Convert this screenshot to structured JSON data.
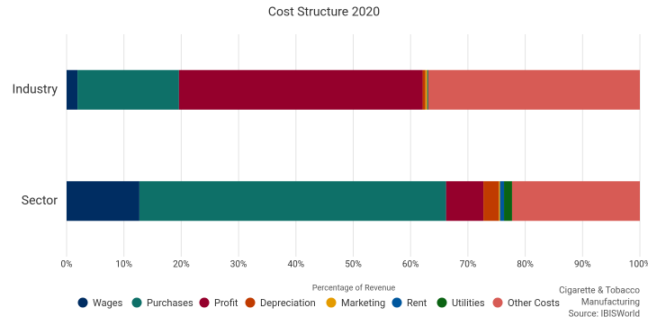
{
  "chart_data": {
    "type": "stacked-barh",
    "title": "Cost Structure 2020",
    "xlabel": "Percentage of Revenue",
    "notes": [
      "Cigarette & Tobacco",
      "Manufacturing",
      "Source: IBISWorld"
    ],
    "categories": [
      "Industry",
      "Sector"
    ],
    "series": [
      {
        "name": "Wages",
        "color": "#002d62",
        "values": [
          1.9,
          12.7
        ]
      },
      {
        "name": "Purchases",
        "color": "#0e7068",
        "values": [
          17.7,
          53.5
        ]
      },
      {
        "name": "Profit",
        "color": "#95002c",
        "values": [
          42.5,
          6.5
        ]
      },
      {
        "name": "Depreciation",
        "color": "#c03b00",
        "values": [
          0.5,
          2.7
        ]
      },
      {
        "name": "Marketing",
        "color": "#e49b00",
        "values": [
          0.3,
          0.2
        ]
      },
      {
        "name": "Rent",
        "color": "#00579e",
        "values": [
          0.1,
          0.7
        ]
      },
      {
        "name": "Utilities",
        "color": "#0b6313",
        "values": [
          0.1,
          1.4
        ]
      },
      {
        "name": "Other Costs",
        "color": "#d75b55",
        "values": [
          36.9,
          22.3
        ]
      }
    ],
    "xlim": [
      0,
      100
    ],
    "xticks": [
      {
        "value": 0,
        "label": "0%"
      },
      {
        "value": 10,
        "label": "10%"
      },
      {
        "value": 20,
        "label": "20%"
      },
      {
        "value": 30,
        "label": "30%"
      },
      {
        "value": 40,
        "label": "40%"
      },
      {
        "value": 50,
        "label": "50%"
      },
      {
        "value": 60,
        "label": "60%"
      },
      {
        "value": 70,
        "label": "70%"
      },
      {
        "value": 80,
        "label": "80%"
      },
      {
        "value": 90,
        "label": "90%"
      },
      {
        "value": 100,
        "label": "100%"
      }
    ],
    "grid": true,
    "legend": "bottom"
  }
}
